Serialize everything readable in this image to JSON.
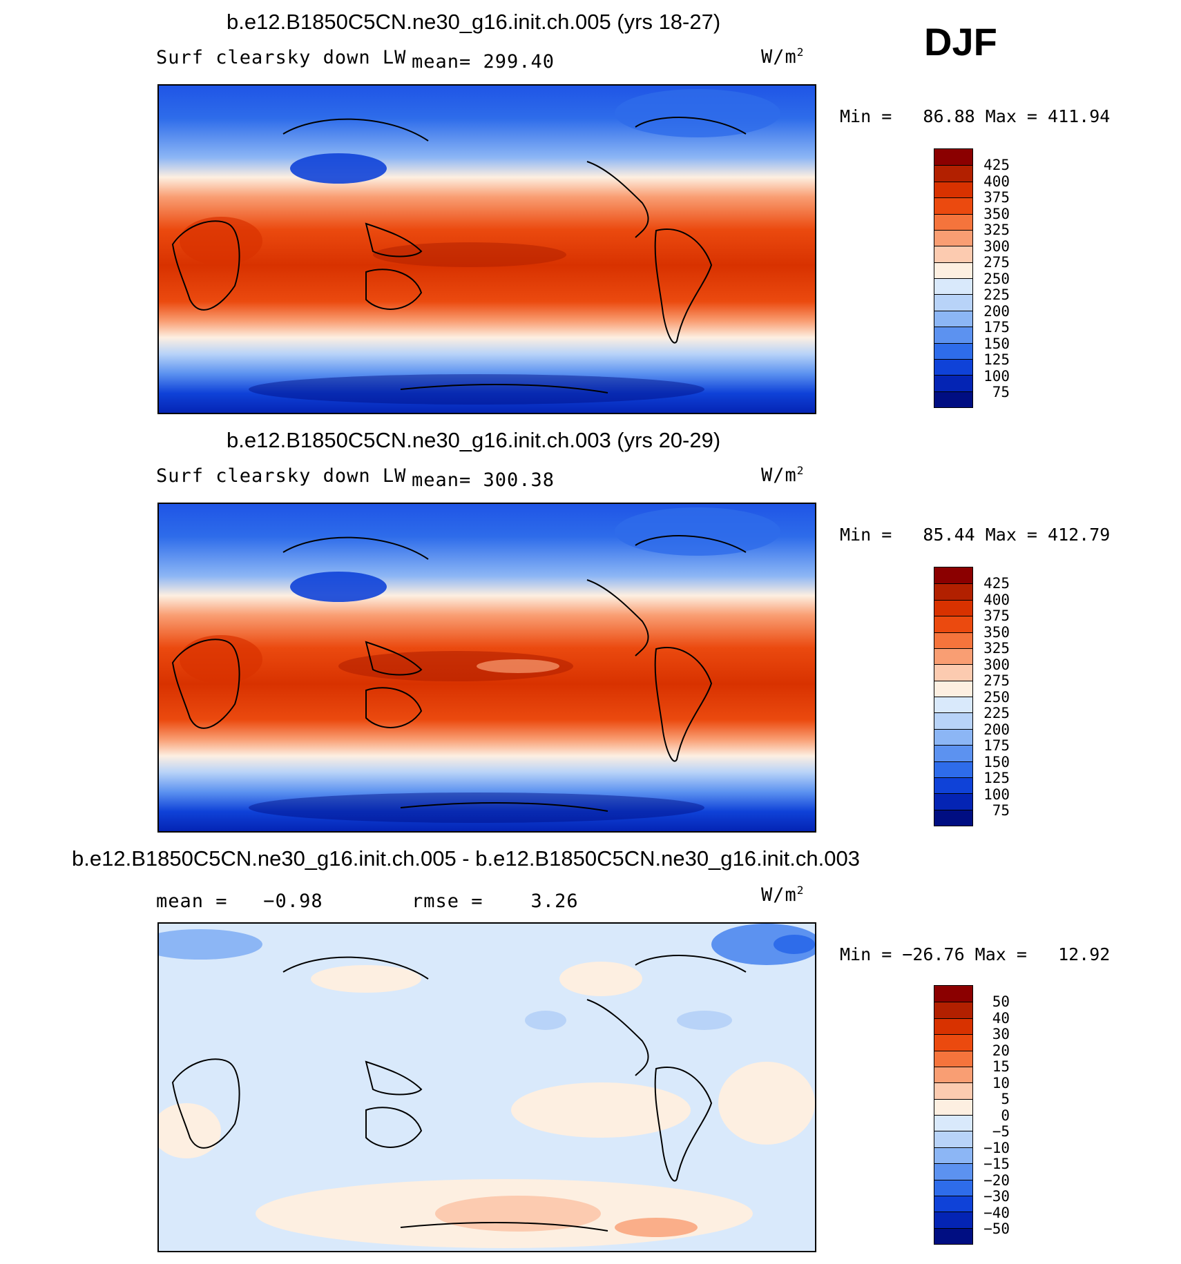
{
  "season": "DJF",
  "units": "W/m²",
  "panels": [
    {
      "title": "b.e12.B1850C5CN.ne30_g16.init.ch.005 (yrs 18-27)",
      "variable": "Surf clearsky down LW",
      "stat1": "mean= 299.40",
      "stat2": "",
      "minmax": "Min =   86.88 Max = 411.94",
      "colorbar": {
        "labels": [
          "425",
          "400",
          "375",
          "350",
          "325",
          "300",
          "275",
          "250",
          "225",
          "200",
          "175",
          "150",
          "125",
          "100",
          "75"
        ],
        "colors": [
          "#8b0000",
          "#b22000",
          "#d83200",
          "#eb4a0f",
          "#f5743c",
          "#f99e73",
          "#fccbb0",
          "#fdefe1",
          "#d9e9fb",
          "#b8d3f8",
          "#8cb6f5",
          "#5c92f0",
          "#2e6cea",
          "#0f42d8",
          "#0424b4",
          "#000e82"
        ]
      }
    },
    {
      "title": "b.e12.B1850C5CN.ne30_g16.init.ch.003 (yrs 20-29)",
      "variable": "Surf clearsky down LW",
      "stat1": "mean= 300.38",
      "stat2": "",
      "minmax": "Min =   85.44 Max = 412.79",
      "colorbar": {
        "labels": [
          "425",
          "400",
          "375",
          "350",
          "325",
          "300",
          "275",
          "250",
          "225",
          "200",
          "175",
          "150",
          "125",
          "100",
          "75"
        ],
        "colors": [
          "#8b0000",
          "#b22000",
          "#d83200",
          "#eb4a0f",
          "#f5743c",
          "#f99e73",
          "#fccbb0",
          "#fdefe1",
          "#d9e9fb",
          "#b8d3f8",
          "#8cb6f5",
          "#5c92f0",
          "#2e6cea",
          "#0f42d8",
          "#0424b4",
          "#000e82"
        ]
      }
    },
    {
      "title": "b.e12.B1850C5CN.ne30_g16.init.ch.005 - b.e12.B1850C5CN.ne30_g16.init.ch.003",
      "variable": "",
      "stat1": "mean =   −0.98",
      "stat2": "rmse =    3.26",
      "minmax": "Min = −26.76 Max =   12.92",
      "colorbar": {
        "labels": [
          "50",
          "40",
          "30",
          "20",
          "15",
          "10",
          "5",
          "0",
          "−5",
          "−10",
          "−15",
          "−20",
          "−30",
          "−40",
          "−50"
        ],
        "colors": [
          "#8b0000",
          "#b22000",
          "#d83200",
          "#eb4a0f",
          "#f5743c",
          "#f99e73",
          "#fccbb0",
          "#fdefe1",
          "#d9e9fb",
          "#b8d3f8",
          "#8cb6f5",
          "#5c92f0",
          "#2e6cea",
          "#0f42d8",
          "#0424b4",
          "#000e82"
        ]
      }
    }
  ]
}
